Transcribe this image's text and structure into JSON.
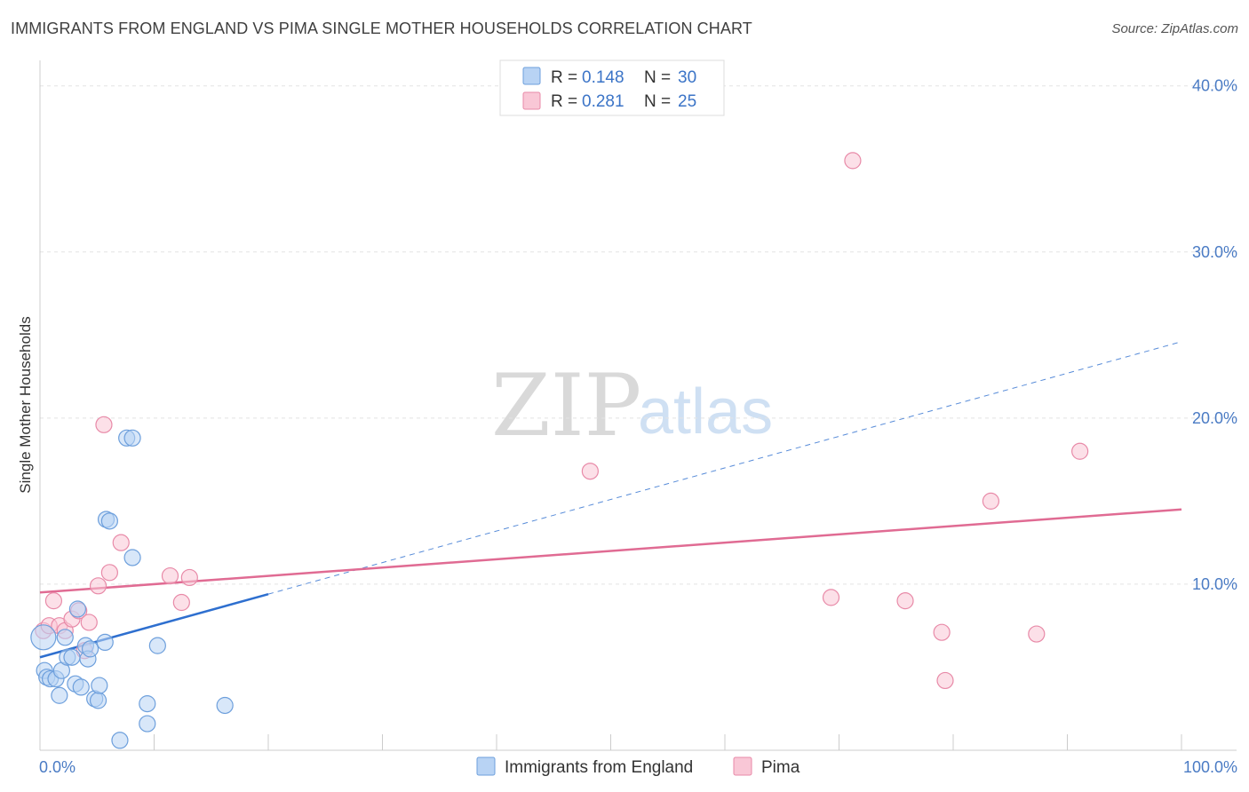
{
  "title": "IMMIGRANTS FROM ENGLAND VS PIMA SINGLE MOTHER HOUSEHOLDS CORRELATION CHART",
  "source": "Source: ZipAtlas.com",
  "watermark": {
    "zip": "ZIP",
    "atlas": "atlas"
  },
  "legend": {
    "items": [
      {
        "r_label": "R = ",
        "r_value": "0.148",
        "n_label": "N = ",
        "n_value": "30"
      },
      {
        "r_label": "R = ",
        "r_value": "0.281",
        "n_label": "N = ",
        "n_value": "25"
      }
    ]
  },
  "colors": {
    "blue_fill": "#b8d3f4",
    "blue_stroke": "#6d9fdc",
    "blue_line": "#2e6fcf",
    "pink_fill": "#f9c7d6",
    "pink_stroke": "#e88aa8",
    "pink_line": "#e06b93",
    "grid": "#e3e3e3",
    "axis": "#cccccc",
    "tick_label": "#4a7bc4"
  },
  "chart_data": {
    "type": "scatter",
    "title": "IMMIGRANTS FROM ENGLAND VS PIMA SINGLE MOTHER HOUSEHOLDS CORRELATION CHART",
    "xlabel": "",
    "ylabel": "Single Mother Households",
    "xlim": [
      0,
      100
    ],
    "ylim": [
      0,
      41
    ],
    "x_tick_labels": [
      "0.0%",
      "100.0%"
    ],
    "y_ticks": [
      10,
      20,
      30,
      40
    ],
    "y_tick_labels": [
      "10.0%",
      "20.0%",
      "30.0%",
      "40.0%"
    ],
    "grid": true,
    "legend_position": "top-center",
    "series": [
      {
        "name": "Immigrants from England",
        "color": "blue",
        "R": 0.148,
        "N": 30,
        "points": [
          [
            0.3,
            6.8
          ],
          [
            0.4,
            4.8
          ],
          [
            0.6,
            4.4
          ],
          [
            0.9,
            4.3
          ],
          [
            1.4,
            4.3
          ],
          [
            1.7,
            3.3
          ],
          [
            1.9,
            4.8
          ],
          [
            2.2,
            6.8
          ],
          [
            2.4,
            5.6
          ],
          [
            2.8,
            5.6
          ],
          [
            3.1,
            4.0
          ],
          [
            3.3,
            8.5
          ],
          [
            3.6,
            3.8
          ],
          [
            4.0,
            6.3
          ],
          [
            4.2,
            5.5
          ],
          [
            4.4,
            6.1
          ],
          [
            4.8,
            3.1
          ],
          [
            5.1,
            3.0
          ],
          [
            5.2,
            3.9
          ],
          [
            5.7,
            6.5
          ],
          [
            5.8,
            13.9
          ],
          [
            6.1,
            13.8
          ],
          [
            7.0,
            0.6
          ],
          [
            7.6,
            18.8
          ],
          [
            8.1,
            18.8
          ],
          [
            8.1,
            11.6
          ],
          [
            9.4,
            2.8
          ],
          [
            9.4,
            1.6
          ],
          [
            10.3,
            6.3
          ],
          [
            16.2,
            2.7
          ]
        ],
        "trend_solid": {
          "x": [
            0,
            20
          ],
          "y": [
            5.6,
            9.4
          ]
        },
        "trend_dashed": {
          "x": [
            20,
            100
          ],
          "y": [
            9.4,
            24.6
          ]
        }
      },
      {
        "name": "Pima",
        "color": "pink",
        "R": 0.281,
        "N": 25,
        "points": [
          [
            0.3,
            7.2
          ],
          [
            0.8,
            7.5
          ],
          [
            1.2,
            9.0
          ],
          [
            1.7,
            7.5
          ],
          [
            2.2,
            7.2
          ],
          [
            2.8,
            7.9
          ],
          [
            3.4,
            8.4
          ],
          [
            3.9,
            6.0
          ],
          [
            4.3,
            7.7
          ],
          [
            5.1,
            9.9
          ],
          [
            5.6,
            19.6
          ],
          [
            6.1,
            10.7
          ],
          [
            7.1,
            12.5
          ],
          [
            11.4,
            10.5
          ],
          [
            12.4,
            8.9
          ],
          [
            13.1,
            10.4
          ],
          [
            48.2,
            16.8
          ],
          [
            69.3,
            9.2
          ],
          [
            71.2,
            35.5
          ],
          [
            75.8,
            9.0
          ],
          [
            79.0,
            7.1
          ],
          [
            79.3,
            4.2
          ],
          [
            83.3,
            15.0
          ],
          [
            87.3,
            7.0
          ],
          [
            91.1,
            18.0
          ]
        ],
        "trend_solid": {
          "x": [
            0,
            100
          ],
          "y": [
            9.5,
            14.5
          ]
        }
      }
    ]
  }
}
